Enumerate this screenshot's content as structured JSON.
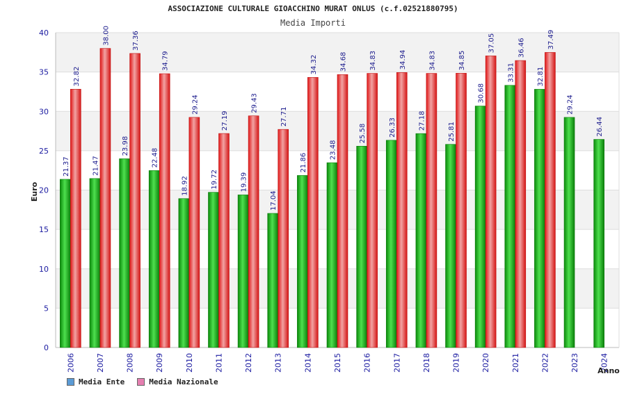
{
  "header": {
    "title": "ASSOCIAZIONE CULTURALE GIOACCHINO MURAT ONLUS (c.f.02521880795)",
    "subtitle": "Media Importi"
  },
  "legend": {
    "items": [
      {
        "label": "Media Ente",
        "color": "#5b9bd5"
      },
      {
        "label": "Media Nazionale",
        "color": "#e57fb0"
      }
    ]
  },
  "chart_data": {
    "type": "bar",
    "title": "Media Importi",
    "xlabel": "Anno",
    "ylabel": "Euro",
    "ylim": [
      0,
      40
    ],
    "yticks": [
      0,
      5,
      10,
      15,
      20,
      25,
      30,
      35,
      40
    ],
    "grid": true,
    "legend_placement": "bottom-left",
    "categories": [
      "2006",
      "2007",
      "2008",
      "2009",
      "2010",
      "2011",
      "2012",
      "2013",
      "2014",
      "2015",
      "2016",
      "2017",
      "2018",
      "2019",
      "2020",
      "2021",
      "2022",
      "2023",
      "2024"
    ],
    "series": [
      {
        "name": "Media Ente",
        "color": "#1aa51a",
        "values": [
          21.37,
          21.47,
          23.98,
          22.48,
          18.92,
          19.72,
          19.39,
          17.04,
          21.86,
          23.48,
          25.58,
          26.33,
          27.18,
          25.81,
          30.68,
          33.31,
          32.81,
          29.24,
          26.44
        ],
        "labels": [
          "21.37",
          "21.47",
          "23.98",
          "22.48",
          "18.92",
          "19.72",
          "19.39",
          "17.04",
          "21.86",
          "23.48",
          "25.58",
          "26.33",
          "27.18",
          "25.81",
          "30.68",
          "33.31",
          "32.81",
          "29.24",
          "26.44"
        ]
      },
      {
        "name": "Media Nazionale",
        "color": "#e52020",
        "values": [
          32.82,
          38.0,
          37.36,
          34.79,
          29.24,
          27.19,
          29.43,
          27.71,
          34.32,
          34.68,
          34.83,
          34.94,
          34.83,
          34.85,
          37.05,
          36.46,
          37.49,
          null,
          null
        ],
        "labels": [
          "32.82",
          "38.00",
          "37.36",
          "34.79",
          "29.24",
          "27.19",
          "29.43",
          "27.71",
          "34.32",
          "34.68",
          "34.83",
          "34.94",
          "34.83",
          "34.85",
          "37.05",
          "36.46",
          "37.49",
          "",
          ""
        ]
      }
    ]
  }
}
